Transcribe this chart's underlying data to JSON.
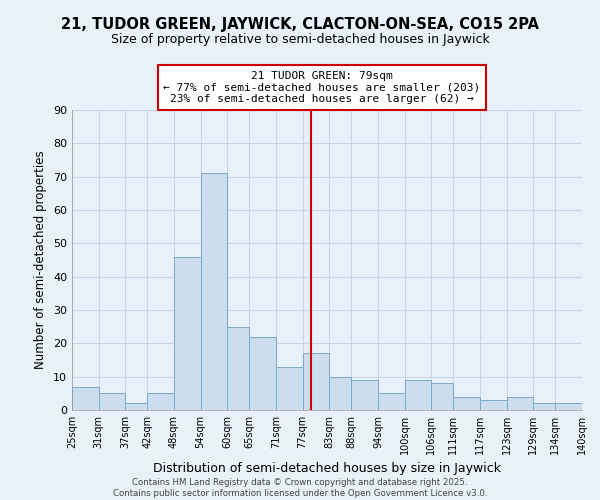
{
  "title": "21, TUDOR GREEN, JAYWICK, CLACTON-ON-SEA, CO15 2PA",
  "subtitle": "Size of property relative to semi-detached houses in Jaywick",
  "xlabel": "Distribution of semi-detached houses by size in Jaywick",
  "ylabel": "Number of semi-detached properties",
  "bin_labels": [
    "25sqm",
    "31sqm",
    "37sqm",
    "42sqm",
    "48sqm",
    "54sqm",
    "60sqm",
    "65sqm",
    "71sqm",
    "77sqm",
    "83sqm",
    "88sqm",
    "94sqm",
    "100sqm",
    "106sqm",
    "111sqm",
    "117sqm",
    "123sqm",
    "129sqm",
    "134sqm",
    "140sqm"
  ],
  "bin_edges": [
    25,
    31,
    37,
    42,
    48,
    54,
    60,
    65,
    71,
    77,
    83,
    88,
    94,
    100,
    106,
    111,
    117,
    123,
    129,
    134,
    140
  ],
  "bar_heights": [
    7,
    5,
    2,
    5,
    46,
    71,
    25,
    22,
    13,
    17,
    10,
    9,
    5,
    9,
    8,
    4,
    3,
    4,
    2,
    2
  ],
  "bar_color": "#ccdded",
  "bar_edgecolor": "#7aaac8",
  "vline_x": 79,
  "vline_color": "#cc0000",
  "annotation_text_line1": "21 TUDOR GREEN: 79sqm",
  "annotation_text_line2": "← 77% of semi-detached houses are smaller (203)",
  "annotation_text_line3": "23% of semi-detached houses are larger (62) →",
  "annotation_box_edgecolor": "#cc0000",
  "annotation_box_facecolor": "white",
  "ylim": [
    0,
    90
  ],
  "yticks": [
    0,
    10,
    20,
    30,
    40,
    50,
    60,
    70,
    80,
    90
  ],
  "bg_color": "#e8f0fa",
  "grid_color": "#c8d4e8",
  "footer_line1": "Contains HM Land Registry data © Crown copyright and database right 2025.",
  "footer_line2": "Contains public sector information licensed under the Open Government Licence v3.0.",
  "title_fontsize": 10.5,
  "subtitle_fontsize": 9
}
